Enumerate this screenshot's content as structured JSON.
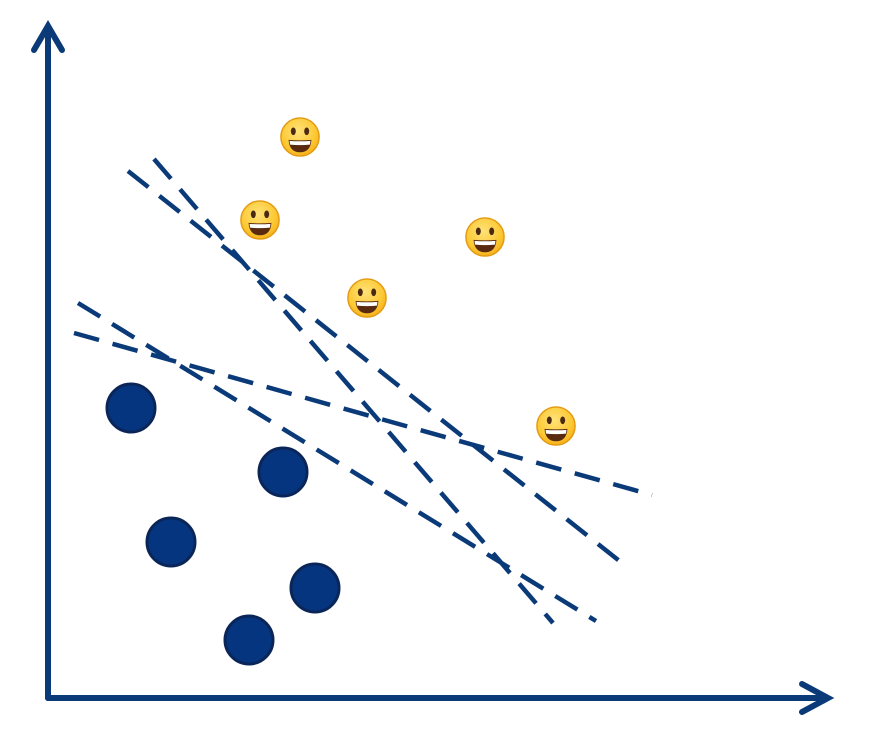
{
  "colors": {
    "axis": "#0a3a78",
    "line": "#0a3a78",
    "dot_fill": "#063580",
    "dot_stroke": "#0a2659",
    "face_light": "#ffe27a",
    "face_dark": "#f6b21c",
    "face_rim": "#e39a12"
  },
  "icons": {
    "class_a": "grinning-face-icon",
    "class_b": "filled-circle-icon"
  },
  "classes": {
    "smileys": 5,
    "dots": 5
  },
  "separator_lines": 4
}
